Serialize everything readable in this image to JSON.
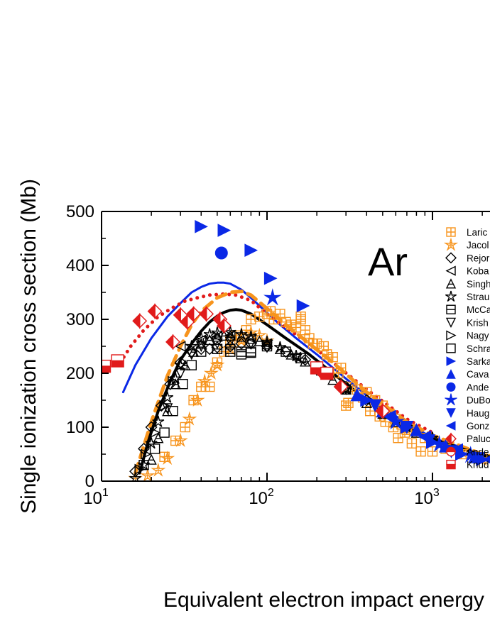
{
  "chart_data": {
    "type": "scatter",
    "panel_label": "Ar",
    "xlabel": "Equivalent electron impact energy (eV)",
    "ylabel": "Single ionization cross section (Mb)",
    "xscale": "log",
    "xlim": [
      10,
      3000
    ],
    "ylim": [
      0,
      500
    ],
    "x_ticks": [
      {
        "value": 10,
        "base": "10",
        "exp": "1"
      },
      {
        "value": 100,
        "base": "10",
        "exp": "2"
      },
      {
        "value": 1000,
        "base": "10",
        "exp": "3"
      }
    ],
    "y_ticks": [
      "0",
      "100",
      "200",
      "300",
      "400",
      "500"
    ],
    "legend_position": "right",
    "legend": [
      {
        "label": "Laric",
        "marker": "square-cross",
        "color": "#f7941d"
      },
      {
        "label": "Jacol",
        "marker": "star-cross",
        "color": "#f7941d"
      },
      {
        "label": "Rejor",
        "marker": "diamond-open",
        "color": "#000000"
      },
      {
        "label": "Koba",
        "marker": "triangle-left-open",
        "color": "#000000"
      },
      {
        "label": "Singh",
        "marker": "triangle-up-line",
        "color": "#000000"
      },
      {
        "label": "Strau",
        "marker": "star-open",
        "color": "#000000"
      },
      {
        "label": "McCa",
        "marker": "square-line",
        "color": "#000000"
      },
      {
        "label": "Krish",
        "marker": "triangle-down-open",
        "color": "#000000"
      },
      {
        "label": "Nagy",
        "marker": "triangle-right-open",
        "color": "#000000"
      },
      {
        "label": "Schra",
        "marker": "square-open",
        "color": "#000000"
      },
      {
        "label": "Sarka",
        "marker": "triangle-right-filled",
        "color": "#0a28e6"
      },
      {
        "label": "Cava",
        "marker": "triangle-up-filled",
        "color": "#0a28e6"
      },
      {
        "label": "Ande",
        "marker": "circle-filled",
        "color": "#0a28e6"
      },
      {
        "label": "DuBo",
        "marker": "star-filled",
        "color": "#0a28e6"
      },
      {
        "label": "Haug",
        "marker": "triangle-down-filled",
        "color": "#0a28e6"
      },
      {
        "label": "Gonz",
        "marker": "triangle-left-filled",
        "color": "#0a28e6"
      },
      {
        "label": "Paluc",
        "marker": "diamond-half",
        "color": "#e11b1b"
      },
      {
        "label": " Ande",
        "marker": "circle-half",
        "color": "#e11b1b"
      },
      {
        "label": "Knud",
        "marker": "square-half",
        "color": "#e11b1b"
      }
    ],
    "curves": [
      {
        "name": "blue theory",
        "color": "#0a28e6",
        "style": "solid",
        "width": 3,
        "x": [
          13.5,
          16,
          20,
          25,
          30,
          35,
          40,
          45,
          50,
          55,
          60,
          70,
          80,
          100,
          120,
          150,
          200,
          300,
          500,
          1000,
          2000,
          3000
        ],
        "y": [
          165,
          215,
          265,
          305,
          330,
          350,
          360,
          366,
          368,
          368,
          366,
          355,
          340,
          312,
          290,
          265,
          235,
          190,
          135,
          80,
          50,
          38
        ]
      },
      {
        "name": "red dotted theory",
        "color": "#e11b1b",
        "style": "dotted",
        "width": 5,
        "x": [
          13,
          15,
          18,
          22,
          27,
          32,
          38,
          45,
          55,
          65,
          80,
          100,
          130,
          180,
          250,
          400,
          700,
          1000
        ],
        "y": [
          220,
          250,
          280,
          305,
          322,
          334,
          340,
          345,
          347,
          345,
          335,
          310,
          285,
          255,
          220,
          170,
          115,
          90
        ]
      },
      {
        "name": "orange dashed theory",
        "color": "#f7941d",
        "style": "dashed",
        "width": 5,
        "x": [
          16,
          20,
          25,
          30,
          35,
          40,
          50,
          60,
          70,
          80,
          100,
          130,
          180,
          250,
          400,
          700,
          1000,
          2000,
          3000
        ],
        "y": [
          15,
          110,
          195,
          250,
          290,
          315,
          340,
          350,
          352,
          345,
          320,
          290,
          255,
          220,
          165,
          110,
          85,
          50,
          38
        ]
      },
      {
        "name": "black theory",
        "color": "#000000",
        "style": "solid",
        "width": 4,
        "x": [
          17,
          19,
          22,
          26,
          30,
          35,
          40,
          45,
          50,
          55,
          60,
          65,
          70,
          80,
          100,
          130,
          180,
          250,
          400,
          700,
          1000,
          2000,
          3000
        ],
        "y": [
          15,
          70,
          130,
          185,
          225,
          255,
          278,
          295,
          306,
          313,
          317,
          318,
          317,
          310,
          290,
          265,
          235,
          200,
          150,
          100,
          78,
          48,
          37
        ]
      }
    ],
    "series": [
      {
        "name": "Laric",
        "marker": "square-cross",
        "color": "#f7941d",
        "x": [
          24,
          28,
          32,
          36,
          40,
          45,
          50,
          55,
          60,
          65,
          70,
          75,
          80,
          90,
          100,
          105,
          110,
          120,
          130,
          140,
          150,
          160,
          170,
          180,
          200,
          220,
          250,
          280,
          300,
          320,
          350,
          400,
          450,
          500,
          550,
          600,
          650,
          700,
          800,
          900,
          1000,
          1200,
          1500,
          2000,
          2500,
          3000,
          160,
          190,
          230,
          270,
          310,
          380,
          420,
          480,
          520,
          580,
          620,
          680,
          750,
          850
        ],
        "y": [
          45,
          75,
          100,
          150,
          175,
          175,
          220,
          240,
          260,
          270,
          265,
          280,
          300,
          305,
          310,
          315,
          300,
          310,
          295,
          290,
          285,
          300,
          280,
          265,
          255,
          250,
          230,
          210,
          140,
          175,
          170,
          165,
          150,
          140,
          125,
          115,
          105,
          95,
          90,
          80,
          55,
          60,
          50,
          42,
          38,
          35,
          305,
          255,
          235,
          200,
          145,
          155,
          130,
          120,
          110,
          100,
          80,
          90,
          70,
          55
        ]
      },
      {
        "name": "Jacol",
        "marker": "star-cross",
        "color": "#f7941d",
        "x": [
          16,
          19,
          22,
          25,
          30,
          34,
          38,
          42,
          46,
          50,
          60,
          70,
          80,
          90,
          100,
          1500,
          2000
        ],
        "y": [
          5,
          10,
          20,
          42,
          75,
          115,
          150,
          185,
          200,
          215,
          245,
          260,
          275,
          270,
          260,
          55,
          40
        ]
      },
      {
        "name": "Rejor",
        "marker": "diamond-open",
        "color": "#000000",
        "x": [
          16,
          18,
          20,
          23,
          26,
          30,
          35,
          40,
          45,
          50,
          60,
          70,
          80,
          100,
          130,
          170,
          220,
          300,
          400,
          500,
          700,
          1000
        ],
        "y": [
          18,
          60,
          100,
          140,
          180,
          220,
          240,
          245,
          245,
          248,
          250,
          255,
          255,
          250,
          240,
          225,
          205,
          175,
          150,
          130,
          100,
          78
        ]
      },
      {
        "name": "Koba",
        "marker": "triangle-left-open",
        "color": "#000000",
        "x": [
          30,
          40,
          50,
          60,
          80,
          100,
          150,
          200,
          300,
          500
        ],
        "y": [
          250,
          262,
          268,
          270,
          265,
          255,
          230,
          205,
          170,
          125
        ]
      },
      {
        "name": "Singh",
        "marker": "triangle-up-line",
        "color": "#000000",
        "x": [
          20,
          22,
          25,
          28,
          32,
          36,
          40,
          45,
          50,
          55,
          60,
          70,
          80,
          90,
          100,
          120,
          140,
          170,
          200,
          250,
          300,
          400,
          500,
          600,
          800,
          1000
        ],
        "y": [
          40,
          80,
          130,
          180,
          215,
          240,
          255,
          262,
          268,
          270,
          270,
          268,
          264,
          260,
          254,
          245,
          235,
          222,
          208,
          188,
          170,
          145,
          125,
          110,
          90,
          78
        ]
      },
      {
        "name": "Strau",
        "marker": "star-open",
        "color": "#000000",
        "x": [
          16,
          18,
          20,
          22,
          25,
          28,
          30,
          35,
          40,
          45,
          50,
          60,
          70,
          80,
          100,
          120,
          150,
          200,
          300,
          500,
          700,
          1000
        ],
        "y": [
          5,
          30,
          70,
          110,
          155,
          190,
          215,
          250,
          265,
          272,
          275,
          276,
          272,
          268,
          258,
          248,
          232,
          210,
          170,
          125,
          100,
          80
        ]
      },
      {
        "name": "McCa",
        "marker": "square-line",
        "color": "#000000",
        "x": [
          50,
          60,
          70,
          80,
          100,
          130,
          160
        ],
        "y": [
          245,
          245,
          240,
          238,
          250,
          240,
          228
        ]
      },
      {
        "name": "Krish",
        "marker": "triangle-down-open",
        "color": "#000000",
        "x": [
          25,
          30,
          35,
          40,
          50,
          60,
          80,
          100,
          150,
          200,
          300
        ],
        "y": [
          135,
          200,
          235,
          250,
          255,
          258,
          255,
          248,
          228,
          205,
          170
        ]
      },
      {
        "name": "Nagy",
        "marker": "triangle-right-open",
        "color": "#000000",
        "x": [
          17,
          18.5,
          21,
          24,
          27
        ],
        "y": [
          22,
          50,
          90,
          140,
          185
        ]
      },
      {
        "name": "Schra",
        "marker": "square-open",
        "color": "#000000",
        "x": [
          18,
          21,
          24,
          27,
          31,
          35,
          40,
          50,
          60,
          70,
          80
        ],
        "y": [
          30,
          60,
          90,
          130,
          180,
          215,
          240,
          245,
          240,
          235,
          240
        ]
      },
      {
        "name": "Sarka",
        "marker": "triangle-right-filled",
        "color": "#0a28e6",
        "x": [
          40,
          55,
          80,
          105,
          165,
          400,
          700,
          1000,
          1500,
          2000
        ],
        "y": [
          472,
          465,
          428,
          376,
          325,
          150,
          100,
          72,
          50,
          40
        ]
      },
      {
        "name": "Cava",
        "marker": "triangle-up-filled",
        "color": "#0a28e6",
        "x": [
          350,
          500,
          800,
          1200,
          1800,
          2500
        ],
        "y": [
          160,
          130,
          95,
          65,
          45,
          36
        ]
      },
      {
        "name": "Ande",
        "marker": "circle-filled",
        "color": "#0a28e6",
        "x": [
          53
        ],
        "y": [
          423
        ]
      },
      {
        "name": "DuBo",
        "marker": "star-filled",
        "color": "#0a28e6",
        "x": [
          108,
          600,
          1100,
          1700,
          2600
        ],
        "y": [
          340,
          110,
          68,
          48,
          35
        ]
      },
      {
        "name": "Haug",
        "marker": "triangle-down-filled",
        "color": "#0a28e6",
        "x": [
          450,
          700,
          950,
          1300,
          1900,
          2700
        ],
        "y": [
          140,
          100,
          75,
          55,
          42,
          32
        ]
      },
      {
        "name": "Gonz",
        "marker": "triangle-left-filled",
        "color": "#0a28e6",
        "x": [
          550,
          900,
          1400,
          2200
        ],
        "y": [
          120,
          82,
          58,
          40
        ]
      },
      {
        "name": "Paluc",
        "marker": "diamond-half",
        "color": "#e11b1b",
        "x": [
          17,
          21,
          27,
          30,
          33,
          36,
          43,
          52,
          55,
          210,
          280,
          500
        ],
        "y": [
          297,
          315,
          258,
          308,
          295,
          310,
          310,
          300,
          288,
          205,
          175,
          130
        ]
      },
      {
        "name": " Ande",
        "marker": "circle-half",
        "color": "#e11b1b",
        "x": [],
        "y": []
      },
      {
        "name": "Knud",
        "marker": "square-half",
        "color": "#e11b1b",
        "x": [
          10.4,
          12.5,
          200,
          230
        ],
        "y": [
          213,
          223,
          210,
          200
        ]
      }
    ]
  }
}
